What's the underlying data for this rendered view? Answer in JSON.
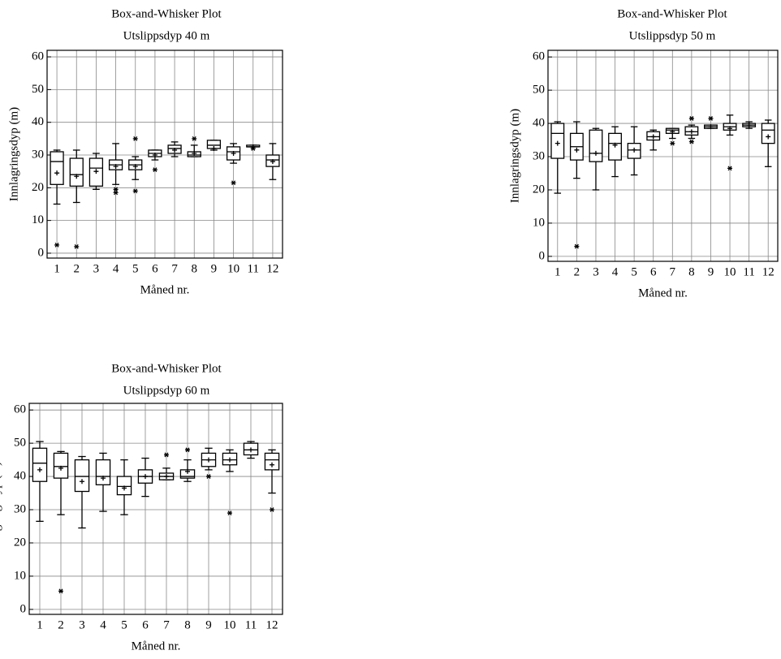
{
  "chart_data": [
    {
      "type": "box",
      "title": "Box-and-Whisker Plot",
      "subtitle": "Utslippsdyp 40 m",
      "x_label": "Måned nr.",
      "y_label": "Innlagringsdyp (m)",
      "categories": [
        1,
        2,
        3,
        4,
        5,
        6,
        7,
        8,
        9,
        10,
        11,
        12
      ],
      "ylim": [
        -1.5,
        62
      ],
      "yticks": [
        0,
        10,
        20,
        30,
        40,
        50,
        60
      ],
      "grid": true,
      "color": "#000000",
      "boxes": [
        {
          "min": 15,
          "q1": 21,
          "median": 28,
          "q3": 31,
          "max": 31.5,
          "mean": 24.5,
          "outliers": [
            2.5
          ]
        },
        {
          "min": 15.5,
          "q1": 20.5,
          "median": 24,
          "q3": 29,
          "max": 31.5,
          "mean": 23.5,
          "outliers": [
            2
          ]
        },
        {
          "min": 19.5,
          "q1": 20.5,
          "median": 26,
          "q3": 29,
          "max": 30.5,
          "mean": 25,
          "outliers": []
        },
        {
          "min": 21,
          "q1": 25.5,
          "median": 27,
          "q3": 28.5,
          "max": 33.5,
          "mean": 26.5,
          "outliers": [
            18.5,
            19.5
          ]
        },
        {
          "min": 22.5,
          "q1": 25.5,
          "median": 27,
          "q3": 28.5,
          "max": 29.5,
          "mean": 26.5,
          "outliers": [
            19,
            35
          ]
        },
        {
          "min": 28.5,
          "q1": 29.5,
          "median": 30.5,
          "q3": 31.5,
          "max": 31.5,
          "mean": 30,
          "outliers": [
            25.5
          ]
        },
        {
          "min": 29.5,
          "q1": 30.5,
          "median": 32,
          "q3": 33,
          "max": 34,
          "mean": 31.5,
          "outliers": []
        },
        {
          "min": 29.5,
          "q1": 29.5,
          "median": 30,
          "q3": 31,
          "max": 33,
          "mean": 30.5,
          "outliers": [
            35
          ]
        },
        {
          "min": 31.5,
          "q1": 32,
          "median": 33,
          "q3": 34.5,
          "max": 34.5,
          "mean": 32,
          "outliers": []
        },
        {
          "min": 27.5,
          "q1": 28.5,
          "median": 31,
          "q3": 32.5,
          "max": 33.5,
          "mean": 30.5,
          "outliers": [
            21.5
          ]
        },
        {
          "min": 32.5,
          "q1": 32.5,
          "median": 32.5,
          "q3": 33,
          "max": 33,
          "mean": 32.5,
          "outliers": [
            32
          ]
        },
        {
          "min": 22.5,
          "q1": 26.5,
          "median": 28.5,
          "q3": 30,
          "max": 33.5,
          "mean": 28,
          "outliers": []
        }
      ]
    },
    {
      "type": "box",
      "title": "Box-and-Whisker Plot",
      "subtitle": "Utslippsdyp 50 m",
      "x_label": "Måned nr.",
      "y_label": "Innlagringsdyp (m)",
      "categories": [
        1,
        2,
        3,
        4,
        5,
        6,
        7,
        8,
        9,
        10,
        11,
        12
      ],
      "ylim": [
        -1.5,
        62
      ],
      "yticks": [
        0,
        10,
        20,
        30,
        40,
        50,
        60
      ],
      "grid": true,
      "color": "#000000",
      "boxes": [
        {
          "min": 19,
          "q1": 29.5,
          "median": 37,
          "q3": 40,
          "max": 40.5,
          "mean": 34,
          "outliers": []
        },
        {
          "min": 23.5,
          "q1": 29,
          "median": 33,
          "q3": 37,
          "max": 40.5,
          "mean": 32,
          "outliers": [
            3
          ]
        },
        {
          "min": 20,
          "q1": 28.5,
          "median": 31,
          "q3": 38,
          "max": 38.5,
          "mean": 31,
          "outliers": []
        },
        {
          "min": 24,
          "q1": 29,
          "median": 34,
          "q3": 37,
          "max": 39,
          "mean": 33.5,
          "outliers": []
        },
        {
          "min": 24.5,
          "q1": 29.5,
          "median": 32,
          "q3": 34,
          "max": 39,
          "mean": 32,
          "outliers": []
        },
        {
          "min": 32,
          "q1": 35,
          "median": 36,
          "q3": 37.5,
          "max": 38,
          "mean": 36,
          "outliers": []
        },
        {
          "min": 35.5,
          "q1": 37,
          "median": 38,
          "q3": 38.5,
          "max": 38.5,
          "mean": 37.5,
          "outliers": [
            34
          ]
        },
        {
          "min": 35.5,
          "q1": 36.5,
          "median": 37.5,
          "q3": 39,
          "max": 39.5,
          "mean": 37.5,
          "outliers": [
            34.5,
            41.5
          ]
        },
        {
          "min": 38.5,
          "q1": 38.5,
          "median": 39,
          "q3": 39.5,
          "max": 39.5,
          "mean": 39,
          "outliers": [
            41.5
          ]
        },
        {
          "min": 36.5,
          "q1": 38,
          "median": 39,
          "q3": 40,
          "max": 42.5,
          "mean": 38.5,
          "outliers": [
            26.5
          ]
        },
        {
          "min": 38.5,
          "q1": 39,
          "median": 39.5,
          "q3": 40,
          "max": 40.5,
          "mean": 39.5,
          "outliers": []
        },
        {
          "min": 27,
          "q1": 34,
          "median": 38,
          "q3": 40,
          "max": 41,
          "mean": 36,
          "outliers": []
        }
      ]
    },
    {
      "type": "box",
      "title": "Box-and-Whisker Plot",
      "subtitle": "Utslippsdyp 60 m",
      "x_label": "Måned nr.",
      "y_label": "Innlagringsdyp (m)",
      "categories": [
        1,
        2,
        3,
        4,
        5,
        6,
        7,
        8,
        9,
        10,
        11,
        12
      ],
      "ylim": [
        -1.5,
        62
      ],
      "yticks": [
        0,
        10,
        20,
        30,
        40,
        50,
        60
      ],
      "grid": true,
      "color": "#000000",
      "boxes": [
        {
          "min": 26.5,
          "q1": 38.5,
          "median": 44,
          "q3": 48.5,
          "max": 50.5,
          "mean": 42,
          "outliers": []
        },
        {
          "min": 28.5,
          "q1": 39.5,
          "median": 43,
          "q3": 47,
          "max": 47.5,
          "mean": 42.5,
          "outliers": [
            5.5
          ]
        },
        {
          "min": 24.5,
          "q1": 35.5,
          "median": 40,
          "q3": 45,
          "max": 46,
          "mean": 38.5,
          "outliers": []
        },
        {
          "min": 29.5,
          "q1": 37.5,
          "median": 40,
          "q3": 45,
          "max": 47,
          "mean": 39.5,
          "outliers": []
        },
        {
          "min": 28.5,
          "q1": 34.5,
          "median": 37,
          "q3": 40,
          "max": 45,
          "mean": 36.5,
          "outliers": []
        },
        {
          "min": 34,
          "q1": 38,
          "median": 40,
          "q3": 42,
          "max": 45.5,
          "mean": 40,
          "outliers": []
        },
        {
          "min": 39,
          "q1": 39,
          "median": 40,
          "q3": 41,
          "max": 42.5,
          "mean": 40,
          "outliers": [
            46.5
          ]
        },
        {
          "min": 38.5,
          "q1": 39.5,
          "median": 40,
          "q3": 42,
          "max": 45,
          "mean": 41.5,
          "outliers": [
            48
          ]
        },
        {
          "min": 42,
          "q1": 43,
          "median": 45,
          "q3": 47,
          "max": 48.5,
          "mean": 45,
          "outliers": [
            40
          ]
        },
        {
          "min": 41.5,
          "q1": 43.5,
          "median": 45,
          "q3": 47,
          "max": 48,
          "mean": 45,
          "outliers": [
            29
          ]
        },
        {
          "min": 45.5,
          "q1": 46.5,
          "median": 48,
          "q3": 50,
          "max": 50.5,
          "mean": 48,
          "outliers": []
        },
        {
          "min": 35,
          "q1": 42,
          "median": 45,
          "q3": 47,
          "max": 48,
          "mean": 43.5,
          "outliers": [
            30
          ]
        }
      ]
    }
  ]
}
